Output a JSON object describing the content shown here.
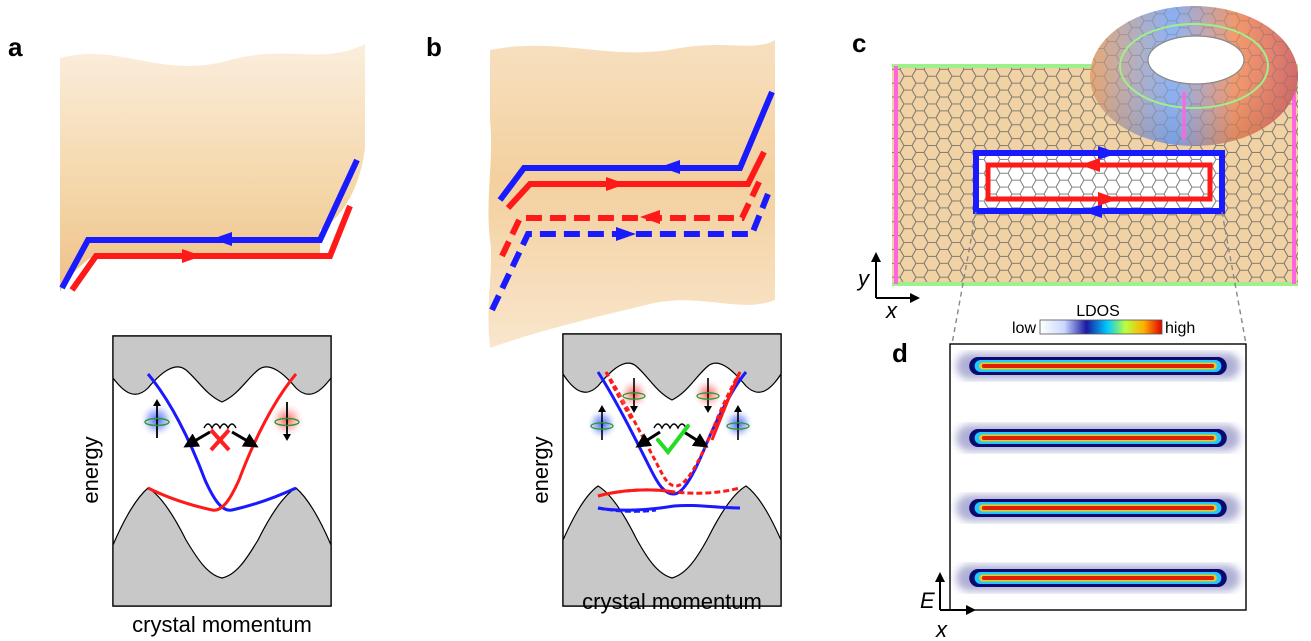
{
  "panels": {
    "a": {
      "label": "a",
      "xlabel": "crystal momentum",
      "ylabel": "energy"
    },
    "b": {
      "label": "b",
      "xlabel": "crystal momentum",
      "ylabel": "energy"
    },
    "c": {
      "label": "c",
      "axis_y": "y",
      "axis_x": "x"
    },
    "d": {
      "label": "d",
      "colorbar_title": "LDOS",
      "colorbar_low": "low",
      "colorbar_high": "high",
      "axis_e": "E",
      "axis_x": "x"
    }
  },
  "colors": {
    "spin_up": "#1a1aff",
    "spin_down": "#ff1a1a",
    "sheet": "#f3d2a2",
    "band_gray": "#c8c8c8",
    "cross": "#ff2020",
    "check": "#22dd22",
    "boundary_green": "#9ef08a",
    "boundary_pink": "#ff66dd"
  },
  "icons": {
    "forbidden": "red-cross-icon",
    "allowed": "green-check-icon"
  }
}
